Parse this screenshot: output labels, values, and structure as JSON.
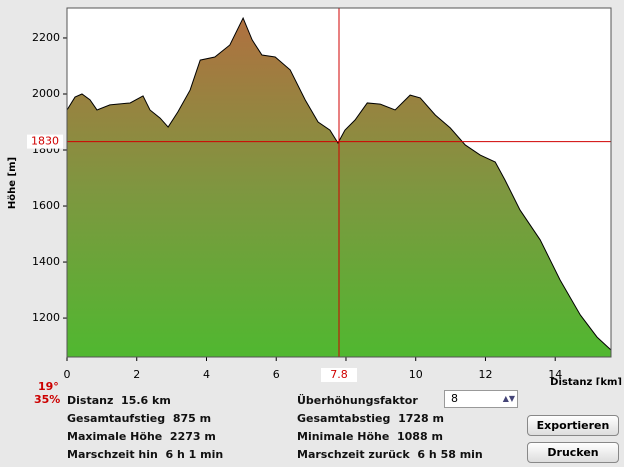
{
  "chart_data": {
    "type": "area",
    "x_label": "Distanz [km]",
    "y_label": "Höhe [m]",
    "x": [
      0,
      0.23,
      0.43,
      0.66,
      0.86,
      1.23,
      1.81,
      2.18,
      2.38,
      2.67,
      2.9,
      3.18,
      3.53,
      3.82,
      4.24,
      4.67,
      5.05,
      5.31,
      5.59,
      5.97,
      6.4,
      6.83,
      7.2,
      7.54,
      7.77,
      7.97,
      8.26,
      8.61,
      8.98,
      9.41,
      9.84,
      10.13,
      10.56,
      10.99,
      11.42,
      11.85,
      12.28,
      12.56,
      12.99,
      13.57,
      14.14,
      14.72,
      15.2,
      15.6
    ],
    "values": [
      1943,
      1989,
      2000,
      1979,
      1943,
      1961,
      1968,
      1993,
      1943,
      1914,
      1882,
      1936,
      2014,
      2121,
      2132,
      2175,
      2271,
      2193,
      2139,
      2132,
      2086,
      1979,
      1900,
      1871,
      1825,
      1871,
      1907,
      1968,
      1964,
      1943,
      1996,
      1986,
      1925,
      1879,
      1818,
      1782,
      1757,
      1693,
      1586,
      1479,
      1336,
      1211,
      1132,
      1086
    ],
    "xlim": [
      0,
      15.6
    ],
    "ylim": [
      1061,
      2307
    ],
    "xticks": [
      0,
      2,
      4,
      6,
      8,
      10,
      12,
      14
    ],
    "yticks": [
      1200,
      1400,
      1600,
      1800,
      2000,
      2200
    ],
    "crosshair": {
      "x": 7.8,
      "y": 1830,
      "color": "#d00000"
    }
  },
  "slope": {
    "angle": "19°",
    "percent": "35%"
  },
  "info": [
    {
      "label": "Distanz",
      "value": "15.6 km"
    },
    {
      "label": "Gesamtaufstieg",
      "value": "875 m"
    },
    {
      "label": "Maximale Höhe",
      "value": "2273 m"
    },
    {
      "label": "Marschzeit hin",
      "value": "6 h 1 min"
    },
    {
      "label": "Gesamtabstieg",
      "value": "1728 m"
    },
    {
      "label": "Minimale Höhe",
      "value": "1088 m"
    },
    {
      "label": "Marschzeit zurück",
      "value": "6 h 58 min"
    }
  ],
  "controls": {
    "factor_label": "Überhöhungsfaktor",
    "factor_value": "8",
    "export": "Exportieren",
    "print": "Drucken"
  }
}
